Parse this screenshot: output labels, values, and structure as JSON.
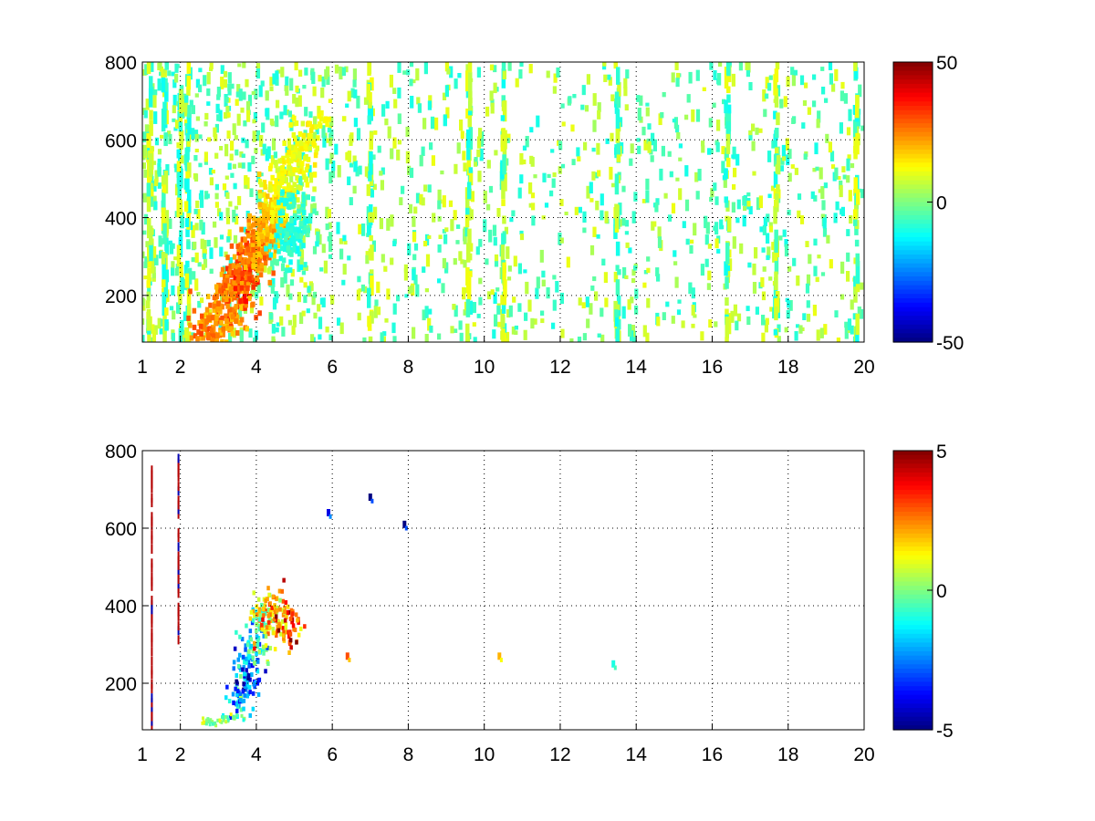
{
  "chart_data": [
    {
      "type": "heatmap",
      "title": "",
      "xlabel": "",
      "ylabel": "",
      "xlim": [
        1,
        20
      ],
      "ylim": [
        80,
        800
      ],
      "grid": true,
      "grid_style": "dotted",
      "xticks": [
        1,
        2,
        4,
        6,
        8,
        10,
        12,
        14,
        16,
        18,
        20
      ],
      "yticks": [
        200,
        400,
        600,
        800
      ],
      "colorbar": {
        "colormap": "jet",
        "range": [
          -50,
          50
        ],
        "ticks": [
          50,
          0,
          -50
        ]
      },
      "description_of_pattern": "sparse cells; strong positive ridge rising from (2.7,90) to (4.5,500); scattered small values beyond x=6",
      "features": {
        "ridge": [
          {
            "x": 2.6,
            "y": 95,
            "value": 30
          },
          {
            "x": 3.2,
            "y": 160,
            "value": 25
          },
          {
            "x": 3.6,
            "y": 240,
            "value": 35
          },
          {
            "x": 3.9,
            "y": 300,
            "value": 30
          },
          {
            "x": 4.2,
            "y": 360,
            "value": 25
          },
          {
            "x": 4.5,
            "y": 420,
            "value": 18
          },
          {
            "x": 4.8,
            "y": 500,
            "value": 12
          },
          {
            "x": 5.6,
            "y": 650,
            "value": 15
          }
        ],
        "negative_lobe": [
          {
            "x": 4.8,
            "y": 340,
            "value": -12
          },
          {
            "x": 5.0,
            "y": 400,
            "value": -10
          }
        ],
        "streak_columns": [
          1.2,
          1.6,
          2.0,
          2.2,
          7.0,
          9.6,
          10.5,
          13.5,
          16.4,
          17.7,
          19.8
        ]
      }
    },
    {
      "type": "heatmap",
      "title": "",
      "xlabel": "",
      "ylabel": "",
      "xlim": [
        1,
        20
      ],
      "ylim": [
        80,
        800
      ],
      "grid": true,
      "grid_style": "dotted",
      "xticks": [
        1,
        2,
        4,
        6,
        8,
        10,
        12,
        14,
        16,
        18,
        20
      ],
      "yticks": [
        200,
        400,
        600,
        800
      ],
      "colorbar": {
        "colormap": "jet",
        "range": [
          -5,
          5
        ],
        "ticks": [
          5,
          0,
          -5
        ]
      },
      "features": {
        "cluster": [
          {
            "x": 3.6,
            "y": 180,
            "value": -2
          },
          {
            "x": 3.8,
            "y": 240,
            "value": -3
          },
          {
            "x": 4.0,
            "y": 300,
            "value": -1
          },
          {
            "x": 4.2,
            "y": 360,
            "value": 1
          },
          {
            "x": 4.5,
            "y": 380,
            "value": 2
          },
          {
            "x": 4.8,
            "y": 350,
            "value": 3
          }
        ],
        "vertical_lines": [
          {
            "x": 1.25,
            "ymin": 90,
            "ymax": 770,
            "value": 4.5
          },
          {
            "x": 1.95,
            "ymin": 300,
            "ymax": 790,
            "value": 4.5
          }
        ],
        "isolated": [
          {
            "x": 5.9,
            "y": 640,
            "value": -4
          },
          {
            "x": 7.0,
            "y": 680,
            "value": -5
          },
          {
            "x": 7.9,
            "y": 610,
            "value": -5
          },
          {
            "x": 10.4,
            "y": 270,
            "value": 2
          },
          {
            "x": 13.4,
            "y": 250,
            "value": -1
          },
          {
            "x": 6.4,
            "y": 270,
            "value": 3
          }
        ],
        "base_streak": [
          {
            "x": 2.5,
            "y": 90,
            "value": 0
          },
          {
            "x": 3.1,
            "y": 100,
            "value": 0
          }
        ]
      }
    }
  ]
}
